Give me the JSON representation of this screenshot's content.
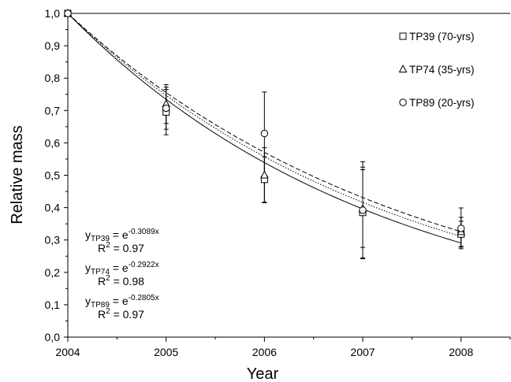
{
  "chart_data": {
    "type": "scatter",
    "xlabel": "Year",
    "ylabel": "Relative  mass",
    "x_ticks": [
      "2004",
      "2005",
      "2006",
      "2007",
      "2008"
    ],
    "y_ticks": [
      "0,0",
      "0,1",
      "0,2",
      "0,3",
      "0,4",
      "0,5",
      "0,6",
      "0,7",
      "0,8",
      "0,9",
      "1,0"
    ],
    "xlim": [
      2004,
      2008.5
    ],
    "ylim": [
      0,
      1.0
    ],
    "grid": false,
    "legend_position": "top-right",
    "series": [
      {
        "name": "TP39 (70-yrs)",
        "marker": "square",
        "line_style": "solid",
        "k": 0.3089,
        "points": [
          {
            "x": 2004,
            "y": 1.0,
            "err": 0
          },
          {
            "x": 2005,
            "y": 0.695,
            "err": 0.07
          },
          {
            "x": 2006,
            "y": 0.487,
            "err": 0.07
          },
          {
            "x": 2007,
            "y": 0.385,
            "err": 0.14
          },
          {
            "x": 2008,
            "y": 0.318,
            "err": 0.04
          }
        ]
      },
      {
        "name": "TP74 (35-yrs)",
        "marker": "triangle",
        "line_style": "dotted",
        "k": 0.2922,
        "points": [
          {
            "x": 2004,
            "y": 1.0,
            "err": 0
          },
          {
            "x": 2005,
            "y": 0.72,
            "err": 0.06
          },
          {
            "x": 2006,
            "y": 0.5,
            "err": 0.085
          },
          {
            "x": 2007,
            "y": 0.397,
            "err": 0.12
          },
          {
            "x": 2008,
            "y": 0.325,
            "err": 0.045
          }
        ]
      },
      {
        "name": "TP89 (20-yrs)",
        "marker": "circle",
        "line_style": "dashed",
        "k": 0.2805,
        "points": [
          {
            "x": 2004,
            "y": 1.0,
            "err": 0
          },
          {
            "x": 2005,
            "y": 0.707,
            "err": 0.065
          },
          {
            "x": 2006,
            "y": 0.629,
            "err": 0.128
          },
          {
            "x": 2007,
            "y": 0.392,
            "err": 0.15
          },
          {
            "x": 2008,
            "y": 0.336,
            "err": 0.063
          }
        ]
      }
    ],
    "equations": [
      {
        "y_prefix": "y",
        "subscript": "TP39",
        "equals": " = e",
        "exponent": "-0.3089x",
        "r2_label": "R",
        "r2_sup": "2",
        "r2_value": " = 0.97"
      },
      {
        "y_prefix": "y",
        "subscript": "TP74",
        "equals": " = e",
        "exponent": "-0.2922x",
        "r2_label": "R",
        "r2_sup": "2",
        "r2_value": " = 0.98"
      },
      {
        "y_prefix": "y",
        "subscript": "TP89",
        "equals": " = e",
        "exponent": "-0.2805x",
        "r2_label": "R",
        "r2_sup": "2",
        "r2_value": " = 0.97"
      }
    ]
  }
}
